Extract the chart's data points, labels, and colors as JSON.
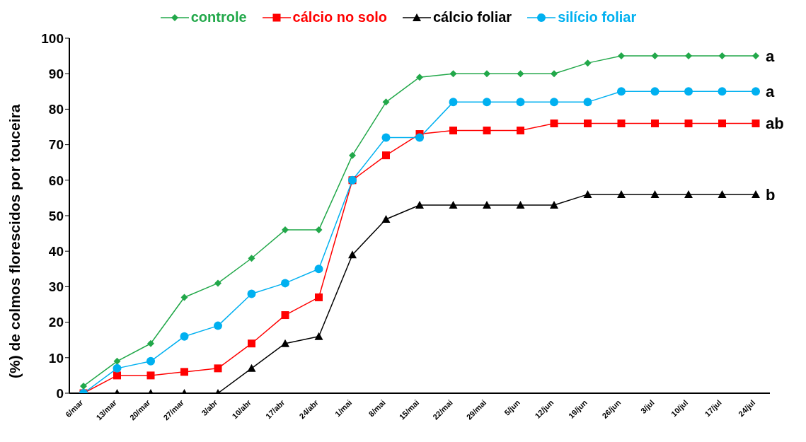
{
  "chart_data": {
    "type": "line",
    "ylabel": "(%)  de colmos florescidos por touceira",
    "categories": [
      "6/mar",
      "13/mar",
      "20/mar",
      "27/mar",
      "3/abr",
      "10/abr",
      "17/abr",
      "24/abr",
      "1/mai",
      "8/mai",
      "15/mai",
      "22/mai",
      "29/mai",
      "5/jun",
      "12/jun",
      "19/jun",
      "26/jun",
      "3/jul",
      "10/jul",
      "17/jul",
      "24/jul"
    ],
    "series": [
      {
        "name": "controle",
        "color": "#22a84a",
        "marker": "diamond",
        "values": [
          2,
          9,
          14,
          27,
          31,
          38,
          46,
          46,
          67,
          82,
          89,
          90,
          90,
          90,
          90,
          93,
          95,
          95,
          95,
          95,
          95
        ]
      },
      {
        "name": "cálcio no solo",
        "color": "#ff0000",
        "marker": "square",
        "values": [
          0,
          5,
          5,
          6,
          7,
          14,
          22,
          27,
          60,
          67,
          73,
          74,
          74,
          74,
          76,
          76,
          76,
          76,
          76,
          76,
          76
        ]
      },
      {
        "name": "cálcio foliar",
        "color": "#000000",
        "marker": "triangle",
        "values": [
          0,
          0,
          0,
          0,
          0,
          7,
          14,
          16,
          39,
          49,
          53,
          53,
          53,
          53,
          53,
          56,
          56,
          56,
          56,
          56,
          56
        ]
      },
      {
        "name": "silício foliar",
        "color": "#00b0f0",
        "marker": "circle",
        "values": [
          0,
          7,
          9,
          16,
          19,
          28,
          31,
          35,
          60,
          72,
          72,
          82,
          82,
          82,
          82,
          82,
          85,
          85,
          85,
          85,
          85
        ]
      }
    ],
    "annotations": [
      {
        "text": "a",
        "x": "24/jul",
        "y": 95
      },
      {
        "text": "a",
        "x": "24/jul",
        "y": 85
      },
      {
        "text": "ab",
        "x": "24/jul",
        "y": 76
      },
      {
        "text": "b",
        "x": "24/jul",
        "y": 56
      }
    ],
    "ylim": [
      0,
      100
    ],
    "yticks": [
      0,
      10,
      20,
      30,
      40,
      50,
      60,
      70,
      80,
      90,
      100
    ],
    "legend": "top",
    "line_style": "solid"
  }
}
